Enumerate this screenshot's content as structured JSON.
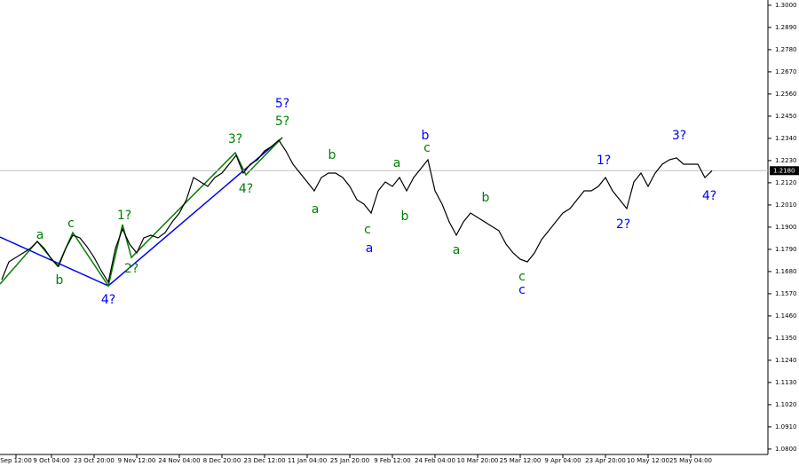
{
  "chart_data": {
    "type": "line",
    "color": "#000000",
    "categories": [
      null,
      null,
      "Sep 12:00",
      null,
      null,
      null,
      null,
      "9 Oct 04:00",
      null,
      null,
      null,
      null,
      null,
      "23 Oct 20:00",
      null,
      null,
      null,
      null,
      null,
      "9 Nov 12:00",
      null,
      null,
      null,
      null,
      null,
      "24 Nov 04:00",
      null,
      null,
      null,
      null,
      null,
      "8 Dec 20:00",
      null,
      null,
      null,
      null,
      null,
      "23 Dec 12:00",
      null,
      null,
      null,
      null,
      null,
      "11 Jan 04:00",
      null,
      null,
      null,
      null,
      null,
      "25 Jan 20:00",
      null,
      null,
      null,
      null,
      null,
      "9 Feb 12:00",
      null,
      null,
      null,
      null,
      null,
      "24 Feb 04:00",
      null,
      null,
      null,
      null,
      null,
      "10 Mar 20:00",
      null,
      null,
      null,
      null,
      null,
      "25 Mar 12:00",
      null,
      null,
      null,
      null,
      null,
      "9 Apr 04:00",
      null,
      null,
      null,
      null,
      null,
      "23 Apr 20:00",
      null,
      null,
      null,
      null,
      null,
      "10 May 12:00",
      null,
      null,
      null,
      null,
      null,
      "25 May 04:00",
      null,
      null,
      null
    ],
    "values": [
      1.164,
      1.1728,
      1.175,
      1.1772,
      1.1794,
      1.1829,
      1.1794,
      1.1741,
      1.1706,
      1.1794,
      1.186,
      1.1847,
      1.1803,
      1.175,
      1.1684,
      1.1627,
      1.1794,
      1.1891,
      1.1816,
      1.1772,
      1.1847,
      1.186,
      1.1847,
      1.1873,
      1.1926,
      1.197,
      1.2036,
      1.2146,
      1.2124,
      1.2102,
      1.2146,
      1.2168,
      1.2212,
      1.2256,
      1.2168,
      1.2212,
      1.2234,
      1.2278,
      1.23,
      1.2331,
      1.2278,
      1.2212,
      1.2168,
      1.2124,
      1.208,
      1.2146,
      1.2168,
      1.2168,
      1.2146,
      1.2102,
      1.2036,
      1.2014,
      1.197,
      1.208,
      1.2124,
      1.2102,
      1.2146,
      1.208,
      1.2146,
      1.219,
      1.2234,
      1.208,
      1.2014,
      1.1926,
      1.186,
      1.1926,
      1.197,
      1.1948,
      1.1926,
      1.1904,
      1.1882,
      1.1816,
      1.1772,
      1.1741,
      1.1728,
      1.1772,
      1.1838,
      1.1882,
      1.1926,
      1.197,
      1.1992,
      1.2036,
      1.208,
      1.208,
      1.2102,
      1.2146,
      1.208,
      1.2036,
      1.1992,
      1.2124,
      1.2168,
      1.2102,
      1.2168,
      1.2212,
      1.2234,
      1.2243,
      1.2212,
      1.2212,
      1.2212,
      1.2146,
      1.218
    ],
    "ylim": [
      1.0782,
      1.3026
    ],
    "yticks": [
      {
        "value": 1.3,
        "label": "1.3000"
      },
      {
        "value": 1.289,
        "label": "1.2890"
      },
      {
        "value": 1.278,
        "label": "1.2780"
      },
      {
        "value": 1.267,
        "label": "1.2670"
      },
      {
        "value": 1.256,
        "label": "1.2560"
      },
      {
        "value": 1.245,
        "label": "1.2450"
      },
      {
        "value": 1.234,
        "label": "1.2340"
      },
      {
        "value": 1.223,
        "label": "1.2230"
      },
      {
        "value": 1.212,
        "label": "1.2120"
      },
      {
        "value": 1.201,
        "label": "1.2010"
      },
      {
        "value": 1.19,
        "label": "1.1900"
      },
      {
        "value": 1.179,
        "label": "1.1790"
      },
      {
        "value": 1.168,
        "label": "1.1680"
      },
      {
        "value": 1.157,
        "label": "1.1570"
      },
      {
        "value": 1.146,
        "label": "1.1460"
      },
      {
        "value": 1.135,
        "label": "1.1350"
      },
      {
        "value": 1.124,
        "label": "1.1240"
      },
      {
        "value": 1.113,
        "label": "1.1130"
      },
      {
        "value": 1.102,
        "label": "1.1020"
      },
      {
        "value": 1.091,
        "label": "1.0910"
      },
      {
        "value": 1.08,
        "label": "1.0800"
      }
    ],
    "last_price": {
      "value": 1.218,
      "label": "1.2180"
    },
    "annotations": [
      {
        "text": "5?",
        "color": "#0000ff"
      },
      {
        "text": "5?",
        "color": "#008000"
      },
      {
        "text": "3?",
        "color": "#008000"
      },
      {
        "text": "4?",
        "color": "#008000"
      },
      {
        "text": "1?",
        "color": "#008000"
      },
      {
        "text": "2?",
        "color": "#008000"
      },
      {
        "text": "4?",
        "color": "#0000ff"
      },
      {
        "text": "c",
        "color": "#008000"
      },
      {
        "text": "a",
        "color": "#008000"
      },
      {
        "text": "b",
        "color": "#008000"
      },
      {
        "text": "b",
        "color": "#008000"
      },
      {
        "text": "a",
        "color": "#008000"
      },
      {
        "text": "c",
        "color": "#008000"
      },
      {
        "text": "a",
        "color": "#0000ff"
      },
      {
        "text": "a",
        "color": "#008000"
      },
      {
        "text": "b",
        "color": "#008000"
      },
      {
        "text": "b",
        "color": "#0000ff"
      },
      {
        "text": "c",
        "color": "#008000"
      },
      {
        "text": "b",
        "color": "#008000"
      },
      {
        "text": "a",
        "color": "#008000"
      },
      {
        "text": "c",
        "color": "#008000"
      },
      {
        "text": "c",
        "color": "#0000ff"
      },
      {
        "text": "1?",
        "color": "#0000ff"
      },
      {
        "text": "2?",
        "color": "#0000ff"
      },
      {
        "text": "3?",
        "color": "#0000ff"
      },
      {
        "text": "4?",
        "color": "#0000ff"
      }
    ]
  }
}
